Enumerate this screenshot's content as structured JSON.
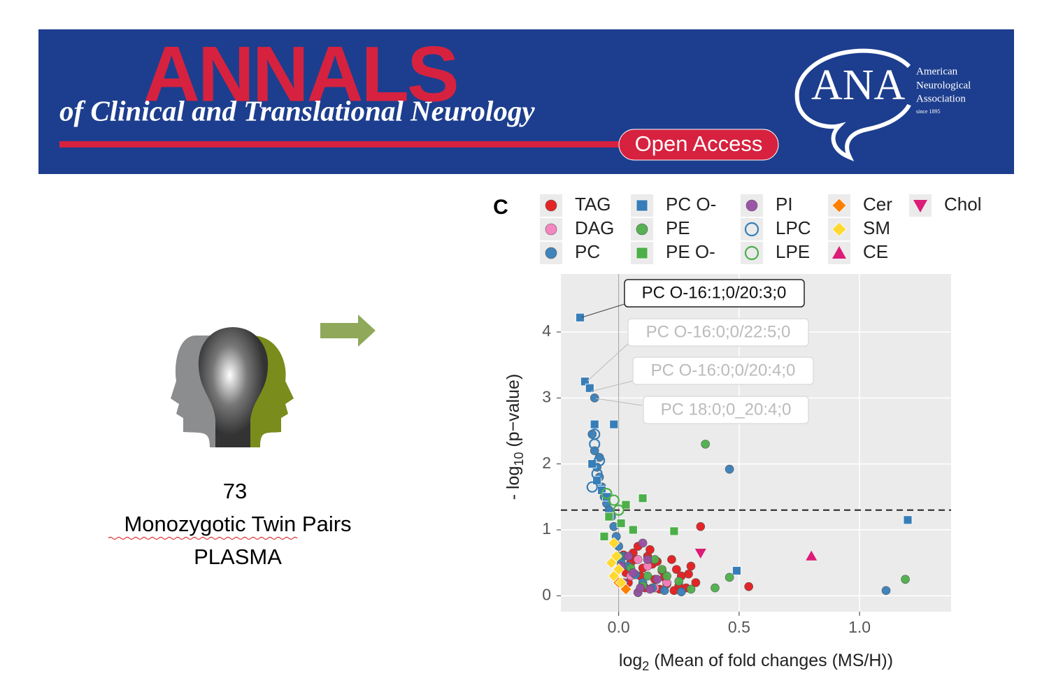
{
  "header": {
    "title": "ANNALS",
    "subtitle": "of Clinical and Translational Neurology",
    "badge": "Open Access",
    "logo": "ANA",
    "org": [
      "American",
      "Neurological",
      "Association"
    ],
    "since": "since 1895"
  },
  "left": {
    "count": "73",
    "label": "Monozygotic Twin Pairs",
    "sample": "PLASMA"
  },
  "chart_data": {
    "type": "scatter",
    "panel": "C",
    "x_label": {
      "main": "log",
      "sub": "2",
      "rest": " (Mean of fold changes (MS/H))"
    },
    "y_label": {
      "main": "- log",
      "sub": "10",
      "rest": " (p−value)"
    },
    "xlim": [
      -0.24,
      1.38
    ],
    "ylim": [
      -0.24,
      4.88
    ],
    "xticks": [
      {
        "value": 0,
        "label": "0.0"
      },
      0.5,
      {
        "value": 1,
        "label": "1.0"
      }
    ],
    "yticks": [
      0,
      1,
      2,
      3,
      4
    ],
    "threshold": 1.3,
    "grid": true,
    "annotations": [
      "PC O-16:1;0/20:3;0",
      "PC O-16:0;0/22:5;0",
      "PC O-16:0;0/20:4;0",
      "PC 18:0;0_20:4;0"
    ],
    "series": [
      {
        "name": "TAG",
        "color": "#e41a1c",
        "shape": "circle",
        "x": [
          0.34,
          0.54,
          0.3,
          0.26,
          0.22,
          0.18,
          0.12,
          0.08,
          0.05,
          0.03,
          0.1,
          0.15,
          0.2,
          0.25,
          0.28,
          0.32,
          0.06,
          0.09,
          0.14,
          0.17,
          0.24,
          0.13,
          0.04,
          0.07,
          0.11,
          0.19,
          0.23,
          0.29,
          0.02,
          0.16
        ],
        "values": [
          1.05,
          0.14,
          0.45,
          0.3,
          0.55,
          0.38,
          0.6,
          0.75,
          0.5,
          0.35,
          0.42,
          0.25,
          0.18,
          0.15,
          0.12,
          0.2,
          0.65,
          0.3,
          0.48,
          0.1,
          0.4,
          0.7,
          0.2,
          0.55,
          0.12,
          0.28,
          0.08,
          0.33,
          0.62,
          0.52
        ]
      },
      {
        "name": "DAG",
        "color": "#f781bf",
        "shape": "circle",
        "x": [
          0.05,
          0.12,
          0.2,
          0.08,
          0.15
        ],
        "values": [
          0.3,
          0.45,
          0.2,
          0.55,
          0.12
        ]
      },
      {
        "name": "PC",
        "color": "#377eb8",
        "shape": "circle",
        "x": [
          -0.1,
          -0.11,
          0.46,
          1.11,
          -0.1,
          -0.09,
          -0.08,
          -0.07,
          -0.06,
          -0.05,
          -0.04,
          -0.03,
          -0.02,
          -0.01,
          0.0,
          0.02,
          0.04,
          0.07,
          0.1,
          0.14,
          0.19,
          0.26,
          -0.08,
          0.01
        ],
        "values": [
          3.0,
          2.45,
          1.92,
          0.08,
          2.2,
          1.95,
          1.8,
          1.65,
          1.5,
          1.4,
          1.3,
          1.2,
          1.05,
          0.9,
          0.75,
          0.6,
          0.45,
          0.32,
          0.2,
          0.12,
          0.08,
          0.06,
          2.1,
          0.5
        ]
      },
      {
        "name": "PC O-",
        "color": "#377eb8",
        "shape": "square",
        "x": [
          -0.16,
          -0.14,
          -0.1,
          -0.02,
          -0.12,
          1.2,
          0.49,
          -0.11,
          -0.09,
          -0.07,
          -0.05
        ],
        "values": [
          4.22,
          3.25,
          2.6,
          2.6,
          3.15,
          1.15,
          0.38,
          2.0,
          1.75,
          1.6,
          1.5
        ]
      },
      {
        "name": "PE",
        "color": "#4daf4a",
        "shape": "circle",
        "x": [
          0.36,
          1.19,
          0.46,
          0.4,
          0.2,
          0.05,
          0.1,
          0.15,
          0.25,
          0.3,
          0.0,
          0.08,
          0.18,
          0.12
        ],
        "values": [
          2.3,
          0.25,
          0.28,
          0.12,
          0.3,
          0.42,
          0.15,
          0.55,
          0.22,
          0.1,
          0.6,
          0.05,
          0.4,
          0.3
        ]
      },
      {
        "name": "PE O-",
        "color": "#4daf4a",
        "shape": "square",
        "x": [
          0.1,
          0.03,
          -0.06,
          0.23,
          -0.04,
          0.01,
          0.06
        ],
        "values": [
          1.48,
          1.38,
          0.9,
          0.98,
          1.2,
          1.1,
          1.0
        ]
      },
      {
        "name": "PI",
        "color": "#984ea3",
        "shape": "circle",
        "x": [
          0.02,
          0.06,
          0.1,
          0.13,
          0.04,
          0.08,
          0.16,
          0.01,
          0.12,
          0.09
        ],
        "values": [
          0.2,
          0.35,
          0.8,
          0.1,
          0.6,
          0.05,
          0.25,
          0.45,
          0.55,
          0.12
        ]
      },
      {
        "name": "LPC",
        "color": "#377eb8",
        "shape": "ring",
        "x": [
          -0.11,
          -0.1,
          -0.09,
          -0.1,
          -0.08
        ],
        "values": [
          1.65,
          2.3,
          1.85,
          2.45,
          2.05
        ]
      },
      {
        "name": "LPE",
        "color": "#4daf4a",
        "shape": "ring",
        "x": [
          -0.02,
          -0.05,
          0.0
        ],
        "values": [
          1.45,
          1.55,
          1.3
        ]
      },
      {
        "name": "Cer",
        "color": "#ff7f00",
        "shape": "diamond",
        "x": [
          0.0,
          0.03,
          -0.01
        ],
        "values": [
          0.2,
          0.1,
          0.35
        ]
      },
      {
        "name": "SM",
        "color": "#ffd92f",
        "shape": "diamond",
        "x": [
          -0.02,
          -0.01,
          0.0,
          -0.03,
          0.01,
          -0.02
        ],
        "values": [
          0.8,
          0.6,
          0.4,
          0.5,
          0.2,
          0.3
        ]
      },
      {
        "name": "CE",
        "color": "#dd1c77",
        "shape": "triangle",
        "x": [
          0.8
        ],
        "values": [
          0.6
        ]
      },
      {
        "name": "Chol",
        "color": "#dd1c77",
        "shape": "triangle-down",
        "x": [
          0.34
        ],
        "values": [
          0.65
        ]
      }
    ]
  }
}
